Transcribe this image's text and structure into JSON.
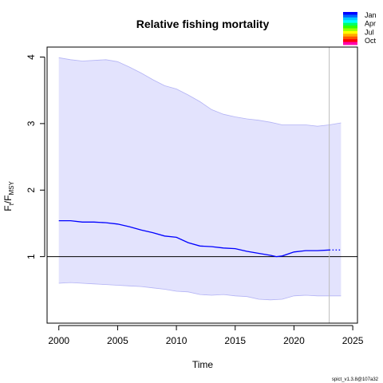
{
  "chart_data": {
    "type": "line",
    "title": "Relative fishing mortality",
    "xlabel": "Time",
    "ylabel": {
      "main": "F",
      "sub_t": "t",
      "slash": "/F",
      "sub_msy": "MSY"
    },
    "xlim": [
      1999,
      2025.4
    ],
    "ylim": [
      0.0,
      4.15
    ],
    "x_ticks": [
      2000,
      2005,
      2010,
      2015,
      2020,
      2025
    ],
    "y_ticks": [
      1,
      2,
      3,
      4
    ],
    "reference_line_y": 1,
    "vertical_line_x": 2023,
    "grid": false,
    "legend_position": "top-right",
    "legend": {
      "labels": [
        "Jan",
        "Apr",
        "Jul",
        "Oct"
      ],
      "colors": [
        "#0000ff",
        "#0066ff",
        "#00c8ff",
        "#00ffff",
        "#00ff66",
        "#33ff00",
        "#99ff00",
        "#ffff00",
        "#ffaa00",
        "#ff5500",
        "#ff0000",
        "#ff00aa"
      ]
    },
    "colors": {
      "estimate_line": "#0000ff",
      "band_fill": "#e3e3fd",
      "band_edge": "#b3b3f5",
      "vertical_line": "#bbbbbb"
    },
    "series": [
      {
        "role": "estimate",
        "x": [
          2000,
          2001,
          2002,
          2003,
          2004,
          2005,
          2006,
          2007,
          2008,
          2009,
          2010,
          2011,
          2012,
          2013,
          2014,
          2015,
          2016,
          2017,
          2018,
          2018.5,
          2019,
          2020,
          2021,
          2022,
          2023
        ],
        "values": [
          1.54,
          1.54,
          1.52,
          1.52,
          1.51,
          1.49,
          1.45,
          1.4,
          1.36,
          1.31,
          1.29,
          1.21,
          1.16,
          1.15,
          1.13,
          1.12,
          1.08,
          1.05,
          1.02,
          1.0,
          1.01,
          1.07,
          1.09,
          1.09,
          1.1
        ]
      },
      {
        "role": "forecast",
        "x": [
          2023,
          2024
        ],
        "values": [
          1.1,
          1.1
        ]
      },
      {
        "role": "upper_ci",
        "x": [
          2000,
          2001,
          2002,
          2003,
          2004,
          2005,
          2006,
          2007,
          2008,
          2009,
          2010,
          2011,
          2012,
          2013,
          2014,
          2015,
          2016,
          2017,
          2018,
          2019,
          2020,
          2021,
          2022,
          2023,
          2024
        ],
        "values": [
          3.99,
          3.96,
          3.94,
          3.95,
          3.96,
          3.93,
          3.85,
          3.76,
          3.66,
          3.57,
          3.52,
          3.43,
          3.33,
          3.21,
          3.14,
          3.1,
          3.07,
          3.05,
          3.02,
          2.98,
          2.98,
          2.98,
          2.96,
          2.98,
          3.01
        ]
      },
      {
        "role": "lower_ci",
        "x": [
          2000,
          2001,
          2002,
          2003,
          2004,
          2005,
          2006,
          2007,
          2008,
          2009,
          2010,
          2011,
          2012,
          2013,
          2014,
          2015,
          2016,
          2017,
          2018,
          2019,
          2020,
          2021,
          2022,
          2023,
          2024
        ],
        "values": [
          0.6,
          0.61,
          0.6,
          0.59,
          0.58,
          0.57,
          0.56,
          0.55,
          0.53,
          0.51,
          0.48,
          0.47,
          0.43,
          0.42,
          0.43,
          0.41,
          0.4,
          0.36,
          0.35,
          0.36,
          0.41,
          0.42,
          0.41,
          0.41,
          0.41
        ]
      }
    ]
  },
  "footer": "spict_v1.3.8@107a32"
}
